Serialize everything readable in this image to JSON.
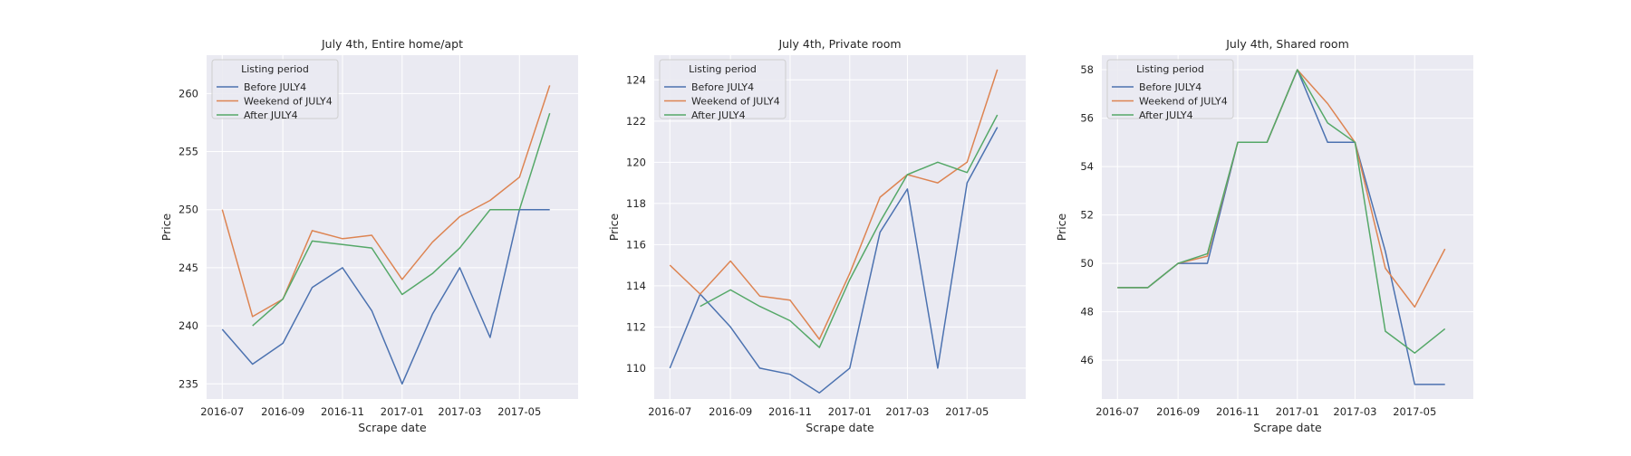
{
  "chart_data": [
    {
      "type": "line",
      "title": "July 4th, Entire home/apt",
      "xlabel": "Scrape date",
      "ylabel": "Price",
      "x": [
        "2016-07",
        "2016-08",
        "2016-09",
        "2016-10",
        "2016-11",
        "2016-12",
        "2017-01",
        "2017-02",
        "2017-03",
        "2017-04",
        "2017-05",
        "2017-06"
      ],
      "xticks": [
        "2016-07",
        "2016-09",
        "2016-11",
        "2017-01",
        "2017-03",
        "2017-05"
      ],
      "xlim": [
        "2016-06-15",
        "2017-06-30"
      ],
      "ylim": [
        233.7,
        263.3
      ],
      "yticks": [
        235,
        240,
        245,
        250,
        255,
        260
      ],
      "grid": true,
      "legend": {
        "title": "Listing period",
        "position": "upper-left"
      },
      "series": [
        {
          "name": "Before JULY4",
          "color": "#4c72b0",
          "values": [
            239.7,
            236.7,
            238.5,
            243.3,
            245.0,
            241.3,
            235.0,
            241.0,
            245.0,
            239.0,
            250.0,
            250.0
          ]
        },
        {
          "name": "Weekend of JULY4",
          "color": "#dd8452",
          "values": [
            250.0,
            240.8,
            242.3,
            248.2,
            247.5,
            247.8,
            244.0,
            247.2,
            249.4,
            250.8,
            252.8,
            260.7
          ]
        },
        {
          "name": "After JULY4",
          "color": "#55a868",
          "values": [
            null,
            240.0,
            242.3,
            247.3,
            247.0,
            246.7,
            242.7,
            244.5,
            246.7,
            250.0,
            250.0,
            258.3
          ]
        }
      ]
    },
    {
      "type": "line",
      "title": "July 4th, Private room",
      "xlabel": "Scrape date",
      "ylabel": "Price",
      "x": [
        "2016-07",
        "2016-08",
        "2016-09",
        "2016-10",
        "2016-11",
        "2016-12",
        "2017-01",
        "2017-02",
        "2017-03",
        "2017-04",
        "2017-05",
        "2017-06"
      ],
      "xticks": [
        "2016-07",
        "2016-09",
        "2016-11",
        "2017-01",
        "2017-03",
        "2017-05"
      ],
      "xlim": [
        "2016-06-15",
        "2017-06-30"
      ],
      "ylim": [
        108.5,
        125.2
      ],
      "yticks": [
        110,
        112,
        114,
        116,
        118,
        120,
        122,
        124
      ],
      "grid": true,
      "legend": {
        "title": "Listing period",
        "position": "upper-left"
      },
      "series": [
        {
          "name": "Before JULY4",
          "color": "#4c72b0",
          "values": [
            110.0,
            113.6,
            112.0,
            110.0,
            109.7,
            108.8,
            110.0,
            116.6,
            118.7,
            110.0,
            119.0,
            121.7
          ]
        },
        {
          "name": "Weekend of JULY4",
          "color": "#dd8452",
          "values": [
            115.0,
            113.6,
            115.2,
            113.5,
            113.3,
            111.4,
            114.6,
            118.3,
            119.4,
            119.0,
            120.0,
            124.5
          ]
        },
        {
          "name": "After JULY4",
          "color": "#55a868",
          "values": [
            null,
            113.0,
            113.8,
            113.0,
            112.3,
            111.0,
            114.3,
            117.1,
            119.4,
            120.0,
            119.5,
            122.3
          ]
        }
      ]
    },
    {
      "type": "line",
      "title": "July 4th, Shared room",
      "xlabel": "Scrape date",
      "ylabel": "Price",
      "x": [
        "2016-07",
        "2016-08",
        "2016-09",
        "2016-10",
        "2016-11",
        "2016-12",
        "2017-01",
        "2017-02",
        "2017-03",
        "2017-04",
        "2017-05",
        "2017-06"
      ],
      "xticks": [
        "2016-07",
        "2016-09",
        "2016-11",
        "2017-01",
        "2017-03",
        "2017-05"
      ],
      "xlim": [
        "2016-06-15",
        "2017-06-30"
      ],
      "ylim": [
        44.4,
        58.6
      ],
      "yticks": [
        46,
        48,
        50,
        52,
        54,
        56,
        58
      ],
      "grid": true,
      "legend": {
        "title": "Listing period",
        "position": "upper-left"
      },
      "series": [
        {
          "name": "Before JULY4",
          "color": "#4c72b0",
          "values": [
            49.0,
            49.0,
            50.0,
            50.0,
            55.0,
            55.0,
            58.0,
            55.0,
            55.0,
            50.5,
            45.0,
            45.0
          ]
        },
        {
          "name": "Weekend of JULY4",
          "color": "#dd8452",
          "values": [
            49.0,
            49.0,
            50.0,
            50.3,
            55.0,
            55.0,
            58.0,
            56.6,
            55.0,
            49.8,
            48.2,
            50.6
          ]
        },
        {
          "name": "After JULY4",
          "color": "#55a868",
          "values": [
            49.0,
            49.0,
            50.0,
            50.4,
            55.0,
            55.0,
            58.0,
            55.8,
            55.0,
            47.2,
            46.3,
            47.3
          ]
        }
      ]
    }
  ]
}
